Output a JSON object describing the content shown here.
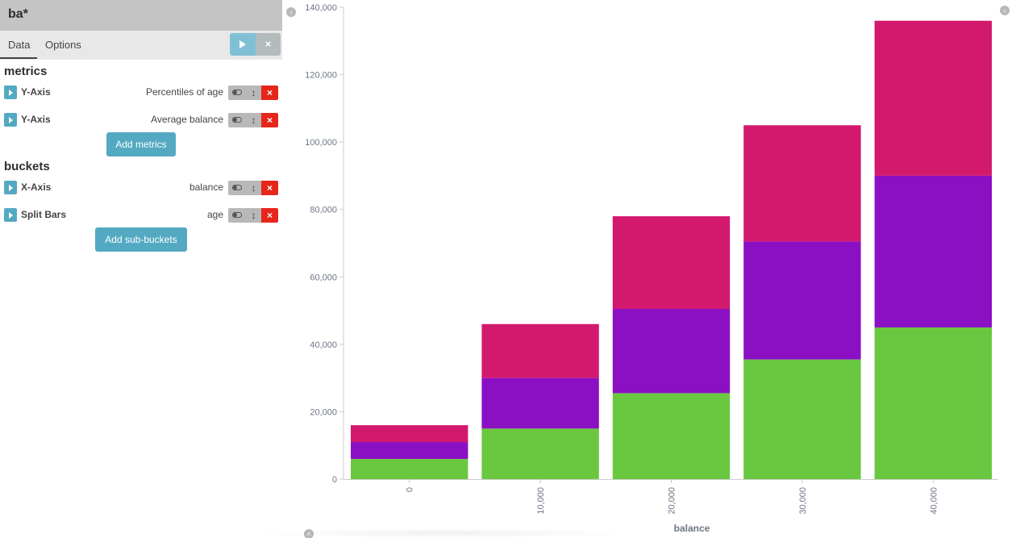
{
  "sidebar": {
    "index_pattern": "ba*",
    "tabs": [
      {
        "label": "Data",
        "active": true
      },
      {
        "label": "Options",
        "active": false
      }
    ],
    "apply_icon": "play-icon",
    "discard_icon": "close-icon",
    "discard_label": "×",
    "metrics_title": "metrics",
    "metrics": [
      {
        "label": "Y-Axis",
        "description": "Percentiles of age"
      },
      {
        "label": "Y-Axis",
        "description": "Average balance"
      }
    ],
    "add_metrics_label": "Add metrics",
    "buckets_title": "buckets",
    "buckets": [
      {
        "label": "X-Axis",
        "description": "balance"
      },
      {
        "label": "Split Bars",
        "description": "age"
      }
    ],
    "add_subbuckets_label": "Add sub-buckets",
    "control_icons": {
      "toggle": "toggle-icon",
      "move": "arrows-vertical-icon",
      "remove": "close-icon"
    },
    "move_glyph": "↕",
    "remove_glyph": "×"
  },
  "collapse_glyph": "‹",
  "up_glyph": "˄",
  "colors": {
    "green": "#6ac840",
    "purple": "#8b10c4",
    "pink": "#d3196e",
    "accent": "#54a9c2"
  },
  "chart_data": {
    "type": "bar",
    "stacked": true,
    "categories": [
      "0",
      "10,000",
      "20,000",
      "30,000",
      "40,000"
    ],
    "series": [
      {
        "color": "#6ac840",
        "values": [
          6000,
          15000,
          25500,
          35500,
          45000
        ]
      },
      {
        "color": "#8b10c4",
        "values": [
          5000,
          15000,
          25000,
          35000,
          45000
        ]
      },
      {
        "color": "#d3196e",
        "values": [
          5000,
          16000,
          27500,
          34500,
          46000
        ]
      }
    ],
    "xlabel": "balance",
    "ylabel": "",
    "ylim": [
      0,
      140000
    ],
    "yticks": [
      "0",
      "20,000",
      "40,000",
      "60,000",
      "80,000",
      "100,000",
      "120,000",
      "140,000"
    ],
    "grid": false,
    "legend": "none"
  }
}
